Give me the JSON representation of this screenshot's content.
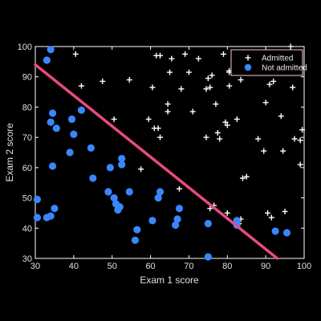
{
  "chart_data": {
    "type": "scatter",
    "title": "",
    "xlabel": "Exam 1 score",
    "ylabel": "Exam 2 score",
    "xlim": [
      30,
      100
    ],
    "ylim": [
      30,
      100
    ],
    "xticks": [
      "30",
      "40",
      "50",
      "60",
      "70",
      "80",
      "90",
      "100"
    ],
    "yticks": [
      "30",
      "40",
      "50",
      "60",
      "70",
      "80",
      "90",
      "100"
    ],
    "grid": false,
    "legend": "top-right",
    "colors": {
      "background": "#000000",
      "axes": "#ffffff",
      "admitted": "#ffffff",
      "not_admitted": "#3a86ff",
      "boundary": "#e84a7f"
    },
    "series": [
      {
        "name": "Admitted",
        "marker": "plus",
        "points": [
          [
            40.5,
            97.5
          ],
          [
            42,
            87
          ],
          [
            47.5,
            88.5
          ],
          [
            50.5,
            76
          ],
          [
            54.5,
            89
          ],
          [
            57.5,
            59.5
          ],
          [
            60.5,
            86.5
          ],
          [
            59.5,
            76
          ],
          [
            61,
            73
          ],
          [
            62,
            73
          ],
          [
            62.5,
            70
          ],
          [
            61.5,
            97
          ],
          [
            62.5,
            97
          ],
          [
            64.5,
            81
          ],
          [
            64.5,
            78.5
          ],
          [
            65.5,
            96
          ],
          [
            65,
            91.5
          ],
          [
            68,
            86
          ],
          [
            69,
            97.5
          ],
          [
            70,
            91.5
          ],
          [
            71,
            78.5
          ],
          [
            72.5,
            96
          ],
          [
            74.5,
            86
          ],
          [
            74.5,
            70
          ],
          [
            75,
            89.5
          ],
          [
            75.5,
            86.5
          ],
          [
            76,
            90.5
          ],
          [
            77,
            81
          ],
          [
            77.5,
            71.5
          ],
          [
            78,
            69.5
          ],
          [
            79,
            97.5
          ],
          [
            79.5,
            75
          ],
          [
            80,
            74
          ],
          [
            80.5,
            87
          ],
          [
            80.5,
            91.5
          ],
          [
            82.5,
            76
          ],
          [
            83.5,
            89
          ],
          [
            84,
            56.5
          ],
          [
            85,
            57
          ],
          [
            88,
            69.5
          ],
          [
            89.5,
            65.5
          ],
          [
            90,
            81.5
          ],
          [
            90.5,
            45
          ],
          [
            91,
            87.5
          ],
          [
            91.5,
            43.5
          ],
          [
            92,
            88.5
          ],
          [
            94,
            77
          ],
          [
            94.5,
            65.5
          ],
          [
            95,
            45.5
          ],
          [
            95.5,
            97
          ],
          [
            97,
            86.5
          ],
          [
            97.5,
            69.5
          ],
          [
            99,
            69
          ],
          [
            99,
            61
          ],
          [
            99.5,
            72.5
          ],
          [
            67.5,
            53
          ],
          [
            75.5,
            46.5
          ],
          [
            76.5,
            47.5
          ],
          [
            80,
            45
          ],
          [
            83,
            41.5
          ],
          [
            83.5,
            43
          ],
          [
            80.5,
            92
          ],
          [
            96.5,
            100
          ]
        ]
      },
      {
        "name": "Not admitted",
        "marker": "circle",
        "points": [
          [
            34,
            99
          ],
          [
            33,
            95.5
          ],
          [
            34.5,
            78
          ],
          [
            34,
            75
          ],
          [
            35.5,
            73
          ],
          [
            42,
            79
          ],
          [
            39.5,
            76
          ],
          [
            40,
            71
          ],
          [
            39,
            65
          ],
          [
            44.5,
            66.5
          ],
          [
            30.5,
            49.5
          ],
          [
            30.5,
            43.5
          ],
          [
            33,
            43.5
          ],
          [
            34,
            44
          ],
          [
            35,
            46.5
          ],
          [
            34.5,
            60.5
          ],
          [
            45,
            56.5
          ],
          [
            49.5,
            60
          ],
          [
            49,
            52
          ],
          [
            50.5,
            50
          ],
          [
            51,
            48
          ],
          [
            51.5,
            46
          ],
          [
            52,
            47
          ],
          [
            52.5,
            63
          ],
          [
            52.5,
            61
          ],
          [
            54.5,
            52
          ],
          [
            56,
            36
          ],
          [
            56.5,
            39.5
          ],
          [
            60.5,
            42.5
          ],
          [
            62,
            50
          ],
          [
            62.5,
            52
          ],
          [
            66.5,
            41
          ],
          [
            67.5,
            46.5
          ],
          [
            67,
            43
          ],
          [
            75,
            41.5
          ],
          [
            75,
            30.5
          ],
          [
            82.5,
            42.5
          ],
          [
            82.5,
            41
          ],
          [
            92.5,
            39
          ],
          [
            95.5,
            38.5
          ]
        ]
      }
    ],
    "decision_boundary": {
      "x": [
        30,
        93
      ],
      "y": [
        94,
        30
      ]
    }
  }
}
